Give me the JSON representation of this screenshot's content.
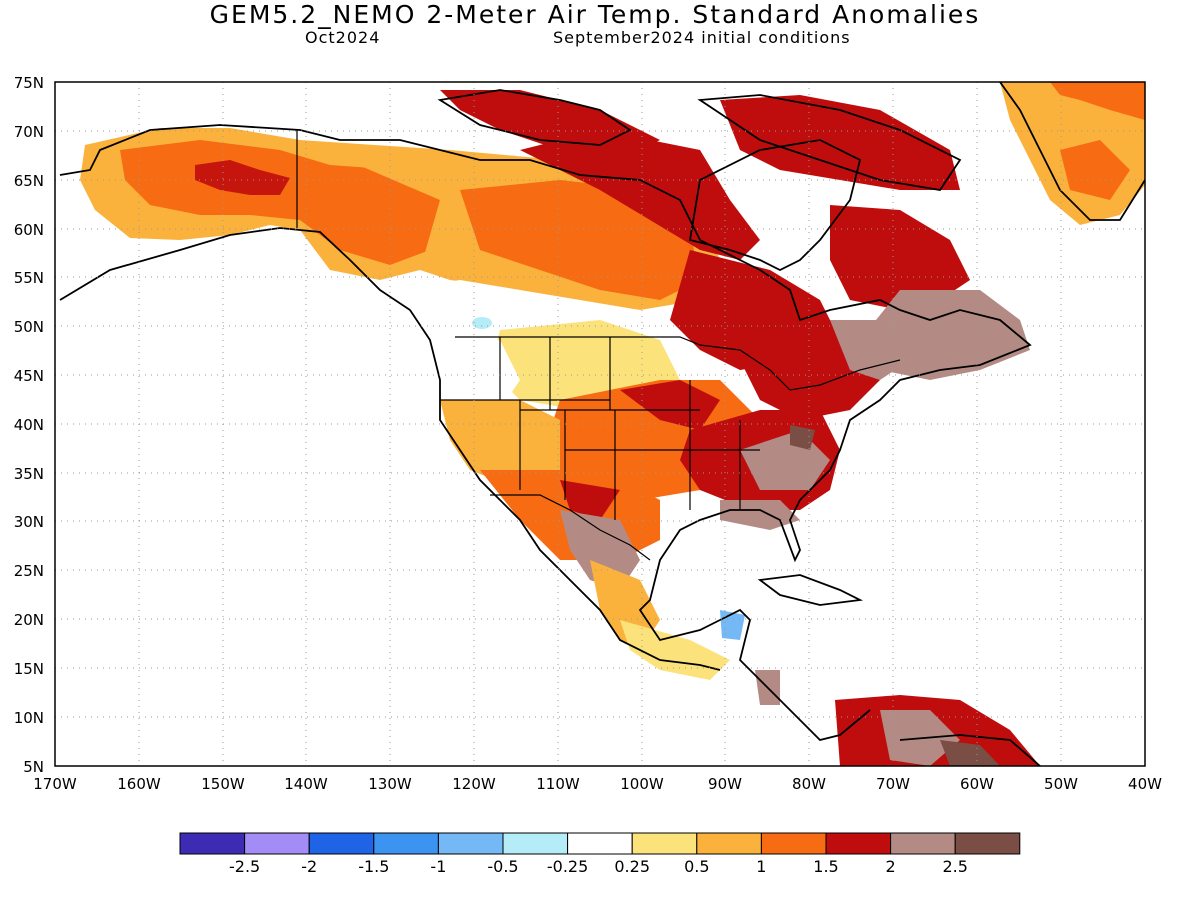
{
  "title": "GEM5.2_NEMO 2-Meter Air Temp. Standard Anomalies",
  "subtitle_left": "Oct2024",
  "subtitle_right": "September2024 initial conditions",
  "lat_labels": [
    "75N",
    "70N",
    "65N",
    "60N",
    "55N",
    "50N",
    "45N",
    "40N",
    "35N",
    "30N",
    "25N",
    "20N",
    "15N",
    "10N",
    "5N"
  ],
  "lon_labels": [
    "170W",
    "160W",
    "150W",
    "140W",
    "130W",
    "120W",
    "110W",
    "100W",
    "90W",
    "80W",
    "70W",
    "60W",
    "50W",
    "40W"
  ],
  "colorbar": {
    "colors": [
      "#3d2cb3",
      "#a38cf5",
      "#1f64e6",
      "#3c94f0",
      "#74b8f5",
      "#b4ecf8",
      "#ffffff",
      "#fbe27b",
      "#fbb23d",
      "#f76b12",
      "#bf0c0c",
      "#b48b84",
      "#7a4e45"
    ],
    "labels": [
      "-2.5",
      "-2",
      "-1.5",
      "-1",
      "-0.5",
      "-0.25",
      "0.25",
      "0.5",
      "1",
      "1.5",
      "2",
      "2.5"
    ]
  }
}
